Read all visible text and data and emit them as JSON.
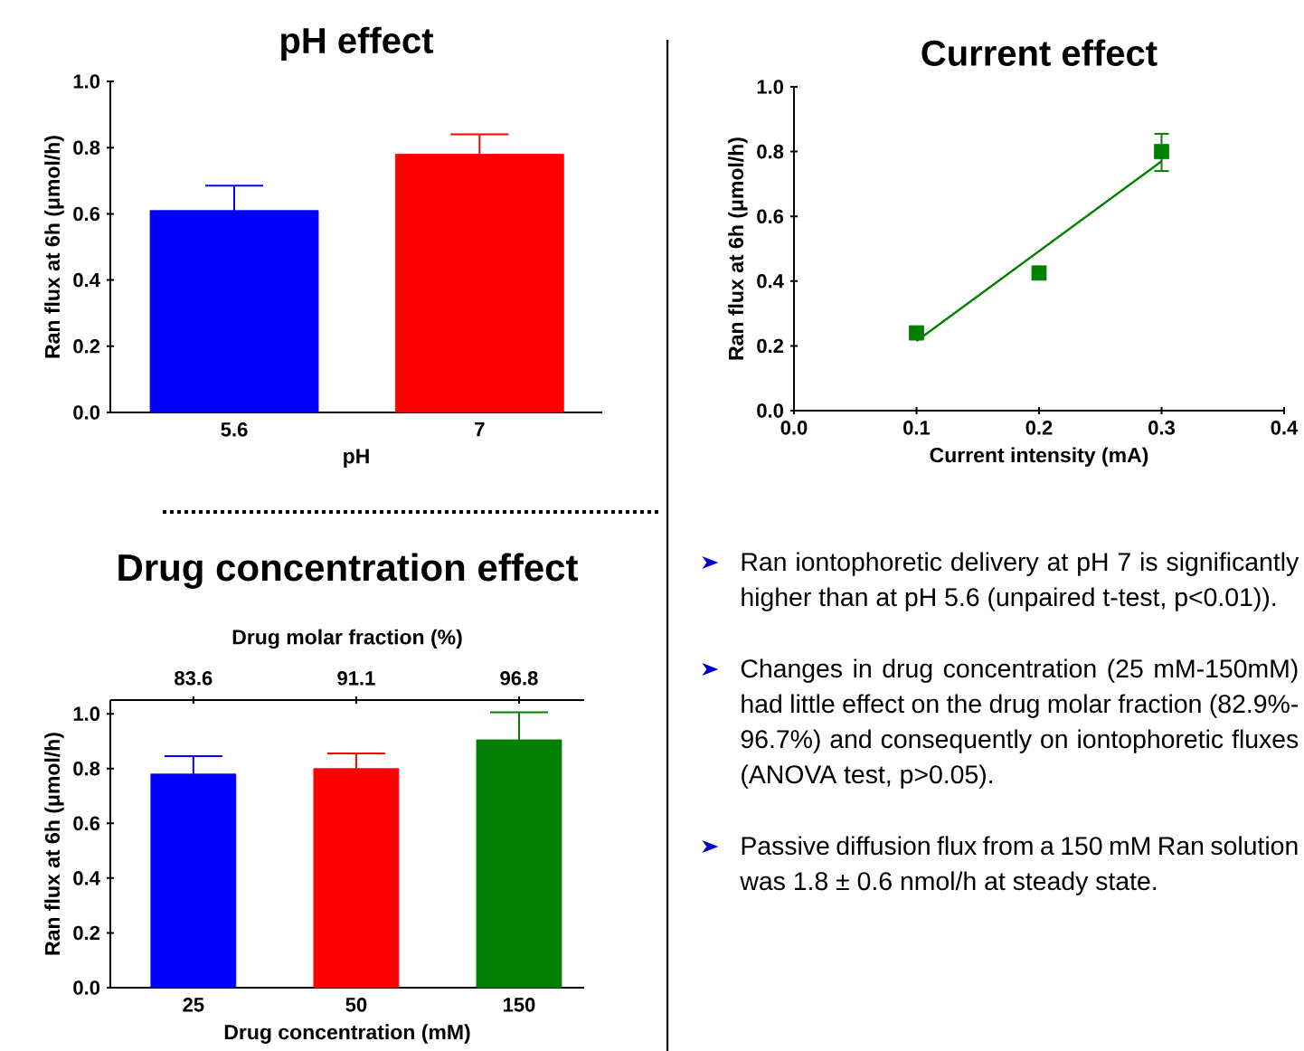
{
  "chart_data": [
    {
      "type": "bar",
      "title": "pH effect",
      "xlabel": "pH",
      "ylabel": "Ran flux at 6h (μmol/h)",
      "categories": [
        "5.6",
        "7"
      ],
      "values": [
        0.61,
        0.78
      ],
      "colors": [
        "#0000ff",
        "#ff0000"
      ],
      "errors": [
        0.075,
        0.06
      ],
      "ylim": [
        0,
        1
      ],
      "yticks": [
        {
          "value": 0,
          "label": "0.0"
        },
        {
          "value": 0.2,
          "label": "0.2"
        },
        {
          "value": 0.4,
          "label": "0.4"
        },
        {
          "value": 0.6,
          "label": "0.6"
        },
        {
          "value": 0.8,
          "label": "0.8"
        },
        {
          "value": 1,
          "label": "1.0"
        }
      ]
    },
    {
      "type": "scatter",
      "title": "Current effect",
      "xlabel": "Current intensity (mA)",
      "ylabel": "Ran flux at 6h (μmol/h)",
      "series": [
        {
          "type": "scatter",
          "marker": "square",
          "color": "#008000",
          "x": [
            0.1,
            0.2,
            0.3
          ],
          "values": [
            0.24,
            0.425,
            0.8
          ],
          "errors": [
            null,
            null,
            [
              0.74,
              0.855
            ]
          ]
        },
        {
          "type": "line",
          "color": "#008000",
          "x": [
            0.1,
            0.3
          ],
          "values": [
            0.215,
            0.77
          ]
        }
      ],
      "xlim": [
        0,
        0.4
      ],
      "xticks": [
        {
          "value": 0,
          "label": "0.0"
        },
        {
          "value": 0.1,
          "label": "0.1"
        },
        {
          "value": 0.2,
          "label": "0.2"
        },
        {
          "value": 0.3,
          "label": "0.3"
        },
        {
          "value": 0.4,
          "label": "0.4"
        }
      ],
      "ylim": [
        0,
        1
      ],
      "yticks": [
        {
          "value": 0,
          "label": "0.0"
        },
        {
          "value": 0.2,
          "label": "0.2"
        },
        {
          "value": 0.4,
          "label": "0.4"
        },
        {
          "value": 0.6,
          "label": "0.6"
        },
        {
          "value": 0.8,
          "label": "0.8"
        },
        {
          "value": 1,
          "label": "1.0"
        }
      ]
    },
    {
      "type": "bar",
      "title": "Drug concentration effect",
      "xlabel": "Drug concentration (mM)",
      "ylabel": "Ran flux at 6h (μmol/h)",
      "x2label": "Drug molar fraction (%)",
      "categories": [
        "25",
        "50",
        "150"
      ],
      "values": [
        0.78,
        0.8,
        0.905
      ],
      "colors": [
        "#0000ff",
        "#ff0000",
        "#007f00"
      ],
      "errors": [
        0.065,
        0.055,
        0.1
      ],
      "annotations": [
        {
          "text": "83.6",
          "x": "25"
        },
        {
          "text": "91.1",
          "x": "50"
        },
        {
          "text": "96.8",
          "x": "150"
        }
      ],
      "ylim": [
        0,
        1.05
      ],
      "yticks": [
        {
          "value": 0,
          "label": "0.0"
        },
        {
          "value": 0.2,
          "label": "0.2"
        },
        {
          "value": 0.4,
          "label": "0.4"
        },
        {
          "value": 0.6,
          "label": "0.6"
        },
        {
          "value": 0.8,
          "label": "0.8"
        },
        {
          "value": 1,
          "label": "1.0"
        }
      ]
    },
    {
      "type": "other",
      "annotations": [
        "Ran iontophoretic delivery at pH 7 is significantly higher than at pH 5.6 (unpaired t-test, p<0.01)).",
        "Changes in drug concentration (25 mM-150mM) had little effect on the drug molar fraction (82.9%-96.7%) and consequently on iontophoretic fluxes (ANOVA test, p>0.05).",
        "Passive diffusion flux from a 150 mM Ran solution was 1.8 ± 0.6 nmol/h at steady state."
      ]
    }
  ]
}
